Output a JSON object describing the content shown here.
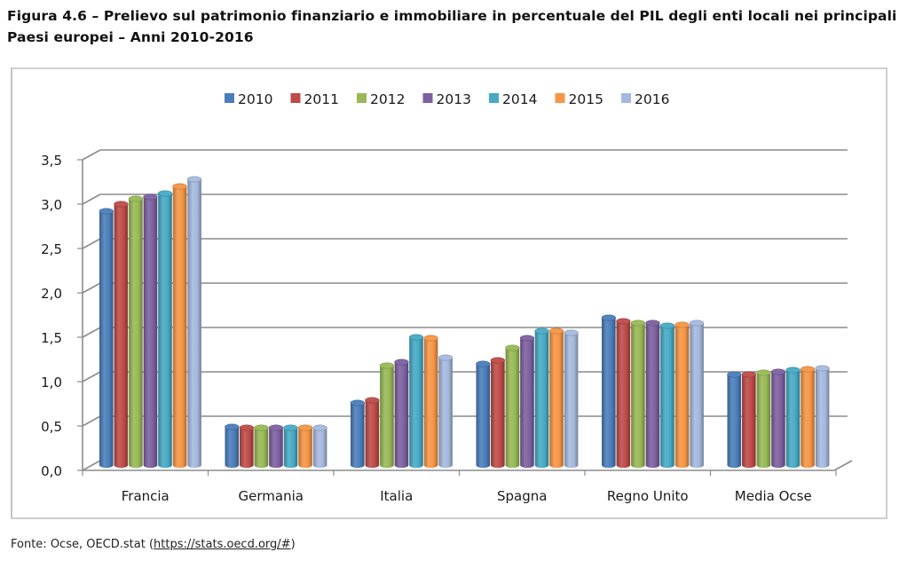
{
  "title": {
    "line1": "Figura 4.6 – Prelievo sul patrimonio finanziario e immobiliare in percentuale del PIL degli enti locali nei principali",
    "line2": "Paesi europei – Anni 2010-2016"
  },
  "source": {
    "prefix": "Fonte: Ocse, OECD.stat (",
    "link": "https://stats.oecd.org/#",
    "suffix": ")"
  },
  "chart_data": {
    "type": "bar",
    "title": "Prelievo sul patrimonio finanziario e immobiliare in percentuale del PIL degli enti locali nei principali Paesi europei – Anni 2010-2016",
    "xlabel": "",
    "ylabel": "",
    "ylim": [
      0,
      3.5
    ],
    "yticks": [
      "0,0",
      "0,5",
      "1,0",
      "1,5",
      "2,0",
      "2,5",
      "3,0",
      "3,5"
    ],
    "ytick_values": [
      0,
      0.5,
      1.0,
      1.5,
      2.0,
      2.5,
      3.0,
      3.5
    ],
    "grid": true,
    "legend_position": "top-center",
    "categories": [
      "Francia",
      "Germania",
      "Italia",
      "Spagna",
      "Regno Unito",
      "Media Ocse"
    ],
    "series": [
      {
        "name": "2010",
        "color": "#4a7ebb",
        "values": [
          2.86,
          0.43,
          0.7,
          1.14,
          1.66,
          1.02
        ]
      },
      {
        "name": "2011",
        "color": "#be4b48",
        "values": [
          2.94,
          0.42,
          0.73,
          1.18,
          1.62,
          1.02
        ]
      },
      {
        "name": "2012",
        "color": "#98b954",
        "values": [
          3.0,
          0.42,
          1.12,
          1.32,
          1.6,
          1.04
        ]
      },
      {
        "name": "2013",
        "color": "#7d60a0",
        "values": [
          3.02,
          0.42,
          1.16,
          1.43,
          1.6,
          1.05
        ]
      },
      {
        "name": "2014",
        "color": "#46aac5",
        "values": [
          3.06,
          0.42,
          1.44,
          1.51,
          1.57,
          1.07
        ]
      },
      {
        "name": "2015",
        "color": "#f69545",
        "values": [
          3.14,
          0.42,
          1.43,
          1.51,
          1.58,
          1.08
        ]
      },
      {
        "name": "2016",
        "color": "#a5b9de",
        "values": [
          3.22,
          0.42,
          1.21,
          1.49,
          1.6,
          1.09
        ]
      }
    ]
  }
}
